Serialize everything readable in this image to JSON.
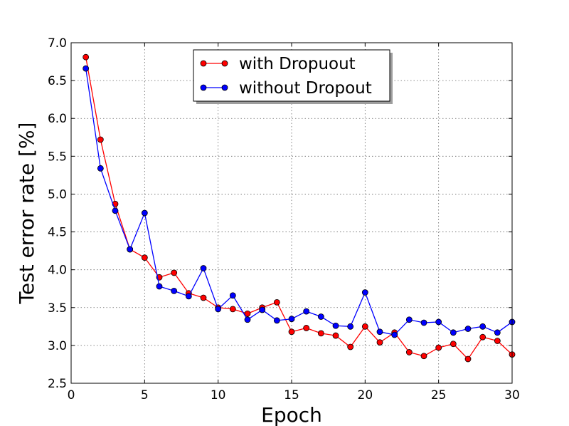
{
  "chart_data": {
    "type": "line",
    "xlabel": "Epoch",
    "ylabel": "Test error rate [%]",
    "xlim": [
      0,
      30
    ],
    "ylim": [
      2.5,
      7.0
    ],
    "xticks": [
      0,
      5,
      10,
      15,
      20,
      25,
      30
    ],
    "yticks": [
      2.5,
      3.0,
      3.5,
      4.0,
      4.5,
      5.0,
      5.5,
      6.0,
      6.5,
      7.0
    ],
    "xtick_labels": [
      "0",
      "5",
      "10",
      "15",
      "20",
      "25",
      "30"
    ],
    "ytick_labels": [
      "2.5",
      "3.0",
      "3.5",
      "4.0",
      "4.5",
      "5.0",
      "5.5",
      "6.0",
      "6.5",
      "7.0"
    ],
    "grid": true,
    "legend_position": "top-center",
    "x": [
      1,
      2,
      3,
      4,
      5,
      6,
      7,
      8,
      9,
      10,
      11,
      12,
      13,
      14,
      15,
      16,
      17,
      18,
      19,
      20,
      21,
      22,
      23,
      24,
      25,
      26,
      27,
      28,
      29,
      30
    ],
    "series": [
      {
        "name": "with Dropuout",
        "color": "#ff0000",
        "values": [
          6.81,
          5.72,
          4.87,
          4.27,
          4.16,
          3.9,
          3.96,
          3.69,
          3.63,
          3.5,
          3.48,
          3.42,
          3.5,
          3.57,
          3.18,
          3.23,
          3.16,
          3.13,
          2.98,
          3.25,
          3.04,
          3.17,
          2.91,
          2.86,
          2.97,
          3.02,
          2.82,
          3.11,
          3.06,
          2.88
        ]
      },
      {
        "name": "without Dropout",
        "color": "#0000ff",
        "values": [
          6.66,
          5.34,
          4.78,
          4.27,
          4.75,
          3.78,
          3.72,
          3.65,
          4.02,
          3.48,
          3.66,
          3.34,
          3.47,
          3.33,
          3.35,
          3.45,
          3.38,
          3.26,
          3.25,
          3.7,
          3.18,
          3.14,
          3.34,
          3.3,
          3.31,
          3.17,
          3.22,
          3.25,
          3.17,
          3.31
        ]
      }
    ]
  }
}
